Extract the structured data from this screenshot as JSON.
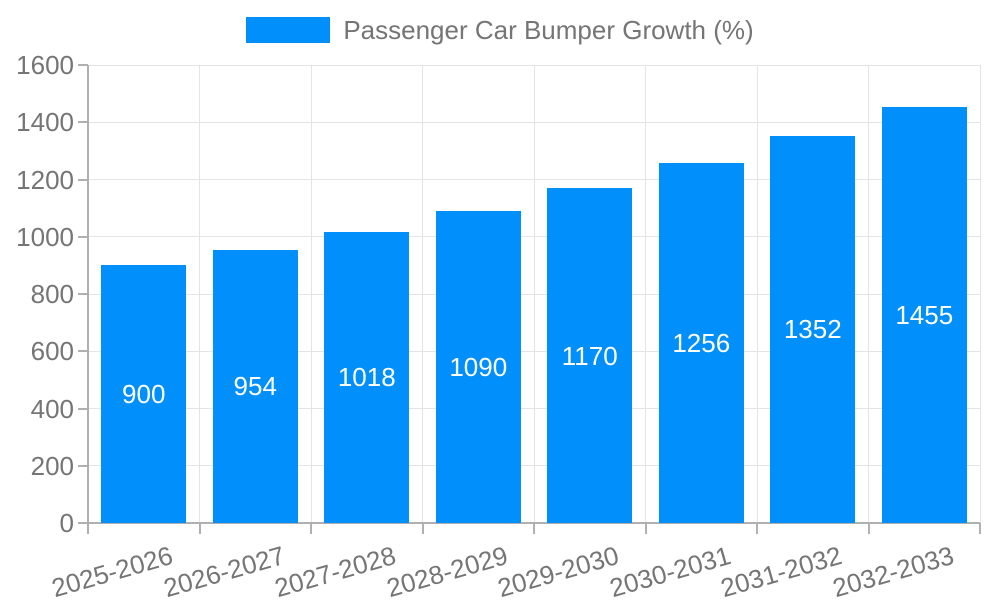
{
  "legend": {
    "label": "Passenger Car Bumper Growth (%)"
  },
  "chart_data": {
    "type": "bar",
    "title": "Passenger Car Bumper Growth (%)",
    "series_name": "Passenger Car Bumper Growth (%)",
    "categories": [
      "2025-2026",
      "2026-2027",
      "2027-2028",
      "2028-2029",
      "2029-2030",
      "2030-2031",
      "2031-2032",
      "2032-2033"
    ],
    "values": [
      900,
      954,
      1018,
      1090,
      1170,
      1256,
      1352,
      1455
    ],
    "data_labels": [
      "900",
      "954",
      "1018",
      "1090",
      "1170",
      "1256",
      "1352",
      "1455"
    ],
    "xlabel": "",
    "ylabel": "",
    "ylim": [
      0,
      1600
    ],
    "ytick_step": 200,
    "ytick_labels": [
      "0",
      "200",
      "400",
      "600",
      "800",
      "1000",
      "1200",
      "1400",
      "1600"
    ],
    "grid": true,
    "legend_position": "top-center",
    "x_label_rotation_deg": -16,
    "colors": {
      "bar": "#008FFB",
      "data_label": "#FFFFFF",
      "axis_text": "#757575",
      "axis_line": "#B0B0B0",
      "grid_line": "#E4E4E4"
    }
  }
}
